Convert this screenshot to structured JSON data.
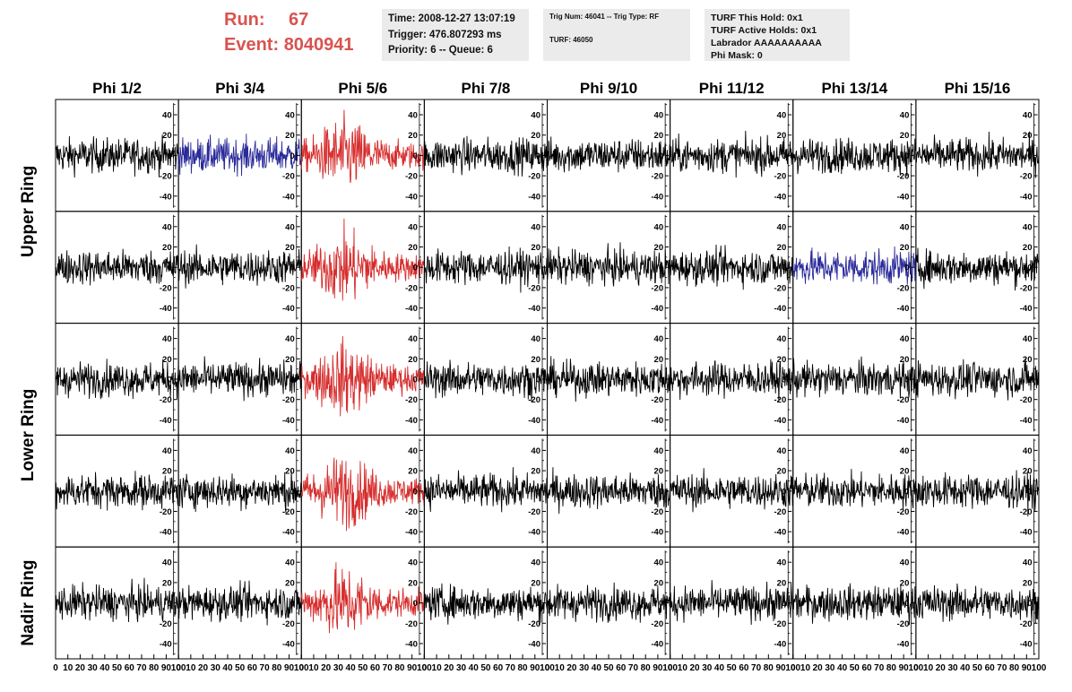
{
  "header": {
    "run_label": "Run:",
    "run_value": "67",
    "event_label": "Event:",
    "event_value": "8040941",
    "accent_color": "#d9534f"
  },
  "info": {
    "time": "Time: 2008-12-27 13:07:19",
    "trigger": "Trigger: 476.807293 ms",
    "priority": "Priority: 6 -- Queue: 6",
    "trig_num": "Trig Num: 46041 -- Trig Type: RF",
    "turf": "TURF: 46050",
    "turf_this_hold": "TURF This Hold: 0x1",
    "turf_active_holds": "TURF Active Holds: 0x1",
    "labrador": "Labrador AAAAAAAAAA",
    "phi_mask": "Phi Mask: 0",
    "box_color": "#ebebeb"
  },
  "chart_data": {
    "type": "line",
    "columns": [
      "Phi 1/2",
      "Phi 3/4",
      "Phi 5/6",
      "Phi 7/8",
      "Phi 9/10",
      "Phi 11/12",
      "Phi 13/14",
      "Phi 15/16"
    ],
    "rows": [
      "Upper Ring",
      "Lower Ring",
      "Nadir Ring"
    ],
    "row_label_rows": [
      [
        0,
        1
      ],
      [
        2,
        3
      ],
      [
        4
      ]
    ],
    "xlim": [
      0,
      100
    ],
    "ylim": [
      -55,
      55
    ],
    "x_ticks": [
      0,
      10,
      20,
      30,
      40,
      50,
      60,
      70,
      80,
      90,
      100
    ],
    "x_tick_labels": [
      "0",
      "10",
      "20",
      "30",
      "40",
      "50",
      "60",
      "70",
      "80",
      "90",
      "100"
    ],
    "y_ticks": [
      -40,
      -20,
      0,
      20,
      40
    ],
    "y_tick_labels": [
      "-40",
      "-20",
      "0",
      "20",
      "40"
    ],
    "colors": {
      "default": "#000000",
      "red": "#d62c2c",
      "blue": "#2a2a9a"
    },
    "highlighted_panels": [
      {
        "row": 0,
        "col": 1,
        "color": "blue"
      },
      {
        "row": 0,
        "col": 2,
        "color": "red"
      },
      {
        "row": 1,
        "col": 2,
        "color": "red"
      },
      {
        "row": 1,
        "col": 6,
        "color": "blue"
      },
      {
        "row": 2,
        "col": 2,
        "color": "red"
      },
      {
        "row": 3,
        "col": 2,
        "color": "red"
      },
      {
        "row": 4,
        "col": 2,
        "color": "red"
      }
    ],
    "sample_count": 260,
    "noise_amplitude": 14,
    "red_amplitude": 22
  }
}
